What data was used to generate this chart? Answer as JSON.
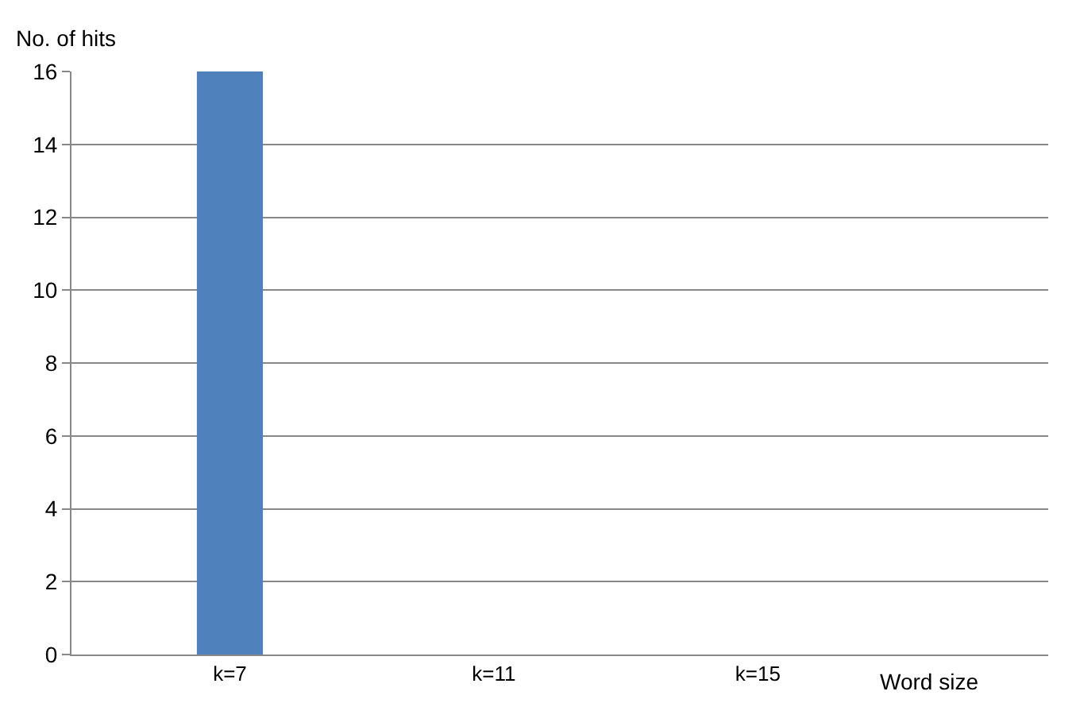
{
  "chart_data": {
    "type": "bar",
    "ylabel": "No. of hits",
    "xlabel": "Word size",
    "categories": [
      "k=7",
      "k=11",
      "k=15"
    ],
    "values": [
      16,
      0,
      0
    ],
    "color": "#4f81bd",
    "ylim": [
      0,
      16
    ],
    "yticks": [
      0,
      2,
      4,
      6,
      8,
      10,
      12,
      14,
      16
    ],
    "grid": "y"
  }
}
